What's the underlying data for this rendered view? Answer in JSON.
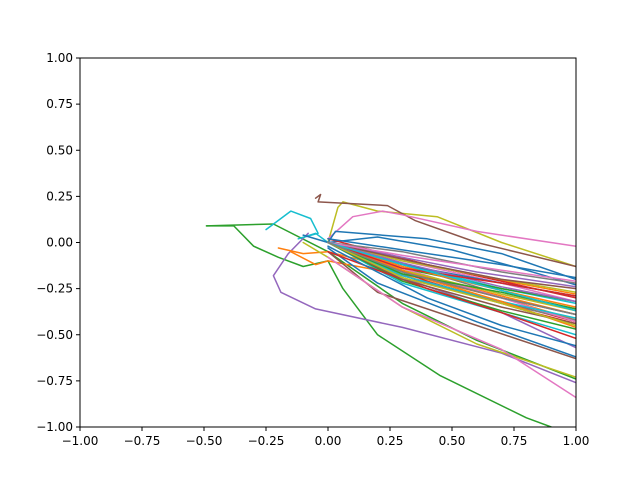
{
  "chart_data": {
    "type": "line",
    "title": "",
    "xlabel": "",
    "ylabel": "",
    "xlim": [
      -1.0,
      1.0
    ],
    "ylim": [
      -1.0,
      1.0
    ],
    "grid": false,
    "x_ticks": [
      "−1.00",
      "−0.75",
      "−0.50",
      "−0.25",
      "0.00",
      "0.25",
      "0.50",
      "0.75",
      "1.00"
    ],
    "y_ticks": [
      "−1.00",
      "−0.75",
      "−0.50",
      "−0.25",
      "0.00",
      "0.25",
      "0.50",
      "0.75",
      "1.00"
    ],
    "x_tick_values": [
      -1.0,
      -0.75,
      -0.5,
      -0.25,
      0.0,
      0.25,
      0.5,
      0.75,
      1.0
    ],
    "y_tick_values": [
      -1.0,
      -0.75,
      -0.5,
      -0.25,
      0.0,
      0.25,
      0.5,
      0.75,
      1.0
    ],
    "series": [
      {
        "color": "#2ca02c",
        "x": [
          -0.49,
          -0.38,
          -0.3,
          -0.2,
          -0.1,
          0.0,
          0.06,
          0.2,
          0.45,
          0.8,
          0.9
        ],
        "y": [
          0.09,
          0.09,
          -0.02,
          -0.08,
          -0.13,
          -0.1,
          -0.25,
          -0.5,
          -0.72,
          -0.95,
          -1.0
        ]
      },
      {
        "color": "#2ca02c",
        "x": [
          -0.49,
          -0.22,
          0.0,
          0.3,
          0.6,
          1.0
        ],
        "y": [
          0.09,
          0.1,
          -0.05,
          -0.33,
          -0.53,
          -0.74
        ]
      },
      {
        "color": "#9467bd",
        "x": [
          -0.08,
          -0.16,
          -0.22,
          -0.19,
          -0.05,
          0.3,
          0.7,
          1.0
        ],
        "y": [
          0.05,
          -0.06,
          -0.18,
          -0.27,
          -0.36,
          -0.46,
          -0.6,
          -0.76
        ]
      },
      {
        "color": "#17becf",
        "x": [
          -0.25,
          -0.15,
          -0.07,
          -0.04,
          -0.12,
          -0.05,
          0.0
        ],
        "y": [
          0.07,
          0.17,
          0.13,
          0.05,
          0.02,
          0.05,
          0.0
        ]
      },
      {
        "color": "#bcbd22",
        "x": [
          0.0,
          0.04,
          0.06,
          0.2,
          0.44,
          0.7,
          1.0
        ],
        "y": [
          0.0,
          0.19,
          0.22,
          0.17,
          0.14,
          0.0,
          -0.13
        ]
      },
      {
        "color": "#8c564b",
        "x": [
          -0.05,
          -0.03,
          -0.04,
          0.24,
          0.35,
          0.6,
          1.0
        ],
        "y": [
          0.24,
          0.26,
          0.22,
          0.2,
          0.12,
          0.0,
          -0.13
        ]
      },
      {
        "color": "#e377c2",
        "x": [
          0.0,
          0.1,
          0.22,
          0.3,
          0.6,
          1.0
        ],
        "y": [
          0.02,
          0.14,
          0.17,
          0.15,
          0.06,
          -0.02
        ]
      },
      {
        "color": "#1f77b4",
        "x": [
          -0.1,
          0.0,
          0.03,
          0.4,
          0.7,
          1.0
        ],
        "y": [
          0.04,
          0.0,
          0.06,
          0.02,
          -0.06,
          -0.2
        ]
      },
      {
        "color": "#1f77b4",
        "x": [
          0.0,
          0.2,
          0.5,
          0.8,
          1.0
        ],
        "y": [
          0.0,
          0.03,
          -0.04,
          -0.15,
          -0.23
        ]
      },
      {
        "color": "#ff7f0e",
        "x": [
          -0.15,
          -0.05,
          0.0,
          0.4,
          0.7,
          1.0
        ],
        "y": [
          -0.05,
          -0.12,
          -0.1,
          -0.2,
          -0.3,
          -0.42
        ]
      },
      {
        "color": "#ff7f0e",
        "x": [
          -0.2,
          -0.1,
          0.0,
          0.35,
          0.7,
          1.0
        ],
        "y": [
          -0.03,
          -0.06,
          -0.05,
          -0.17,
          -0.29,
          -0.39
        ]
      },
      {
        "color": "#d62728",
        "x": [
          0.0,
          0.3,
          0.7,
          1.0
        ],
        "y": [
          0.0,
          -0.18,
          -0.32,
          -0.43
        ]
      },
      {
        "color": "#d62728",
        "x": [
          0.0,
          0.4,
          0.8,
          1.0
        ],
        "y": [
          0.0,
          -0.21,
          -0.37,
          -0.44
        ]
      },
      {
        "color": "#8c564b",
        "x": [
          0.0,
          0.2,
          0.6,
          1.0
        ],
        "y": [
          -0.05,
          -0.27,
          -0.45,
          -0.63
        ]
      },
      {
        "color": "#7f7f7f",
        "x": [
          0.0,
          0.35,
          0.7,
          1.0
        ],
        "y": [
          0.0,
          -0.2,
          -0.33,
          -0.42
        ]
      },
      {
        "color": "#bcbd22",
        "x": [
          -0.1,
          0.0,
          0.3,
          0.6,
          1.0
        ],
        "y": [
          0.0,
          -0.08,
          -0.35,
          -0.55,
          -0.73
        ]
      },
      {
        "color": "#e377c2",
        "x": [
          0.0,
          0.3,
          0.7,
          1.0
        ],
        "y": [
          -0.08,
          -0.35,
          -0.58,
          -0.84
        ]
      },
      {
        "color": "#17becf",
        "x": [
          0.0,
          0.4,
          0.7,
          1.0
        ],
        "y": [
          0.0,
          -0.15,
          -0.25,
          -0.33
        ]
      },
      {
        "color": "#1f77b4",
        "x": [
          0.0,
          0.2,
          0.6,
          1.0
        ],
        "y": [
          -0.03,
          -0.22,
          -0.43,
          -0.62
        ]
      },
      {
        "color": "#9467bd",
        "x": [
          0.0,
          0.3,
          0.7,
          1.0
        ],
        "y": [
          0.0,
          -0.19,
          -0.38,
          -0.57
        ]
      },
      {
        "color": "#2ca02c",
        "x": [
          0.0,
          0.3,
          0.7,
          1.0
        ],
        "y": [
          0.0,
          -0.14,
          -0.25,
          -0.32
        ]
      },
      {
        "color": "#ff7f0e",
        "x": [
          0.0,
          0.3,
          0.6,
          1.0
        ],
        "y": [
          0.0,
          -0.09,
          -0.18,
          -0.28
        ]
      },
      {
        "color": "#d62728",
        "x": [
          0.0,
          0.4,
          0.8,
          1.0
        ],
        "y": [
          0.02,
          -0.12,
          -0.24,
          -0.3
        ]
      },
      {
        "color": "#8c564b",
        "x": [
          0.0,
          0.3,
          0.7,
          1.0
        ],
        "y": [
          0.0,
          -0.16,
          -0.3,
          -0.39
        ]
      },
      {
        "color": "#e377c2",
        "x": [
          0.0,
          0.3,
          0.7,
          1.0
        ],
        "y": [
          0.0,
          -0.1,
          -0.22,
          -0.32
        ]
      },
      {
        "color": "#7f7f7f",
        "x": [
          0.0,
          0.4,
          0.7,
          1.0
        ],
        "y": [
          0.0,
          -0.16,
          -0.28,
          -0.36
        ]
      },
      {
        "color": "#bcbd22",
        "x": [
          0.0,
          0.3,
          0.7,
          1.0
        ],
        "y": [
          0.0,
          -0.1,
          -0.2,
          -0.27
        ]
      },
      {
        "color": "#17becf",
        "x": [
          0.0,
          0.3,
          0.7,
          1.0
        ],
        "y": [
          0.0,
          -0.22,
          -0.38,
          -0.5
        ]
      },
      {
        "color": "#1f77b4",
        "x": [
          0.0,
          0.35,
          0.7,
          1.0
        ],
        "y": [
          0.02,
          -0.05,
          -0.12,
          -0.19
        ]
      },
      {
        "color": "#9467bd",
        "x": [
          0.0,
          0.3,
          0.6,
          1.0
        ],
        "y": [
          0.0,
          -0.08,
          -0.16,
          -0.24
        ]
      },
      {
        "color": "#2ca02c",
        "x": [
          0.0,
          0.3,
          0.7,
          1.0
        ],
        "y": [
          0.0,
          -0.21,
          -0.37,
          -0.47
        ]
      },
      {
        "color": "#ff7f0e",
        "x": [
          0.0,
          0.3,
          0.7,
          1.0
        ],
        "y": [
          0.0,
          -0.13,
          -0.26,
          -0.35
        ]
      },
      {
        "color": "#d62728",
        "x": [
          0.0,
          0.4,
          0.7,
          1.0
        ],
        "y": [
          -0.05,
          -0.25,
          -0.38,
          -0.52
        ]
      },
      {
        "color": "#8c564b",
        "x": [
          0.0,
          0.4,
          0.7,
          1.0
        ],
        "y": [
          0.0,
          -0.12,
          -0.2,
          -0.25
        ]
      },
      {
        "color": "#1f77b4",
        "x": [
          0.0,
          0.4,
          0.7,
          1.0
        ],
        "y": [
          -0.02,
          -0.3,
          -0.45,
          -0.56
        ]
      },
      {
        "color": "#e377c2",
        "x": [
          0.0,
          0.3,
          0.7,
          1.0
        ],
        "y": [
          0.0,
          -0.14,
          -0.3,
          -0.43
        ]
      },
      {
        "color": "#7f7f7f",
        "x": [
          0.0,
          0.3,
          0.7,
          1.0
        ],
        "y": [
          0.0,
          -0.05,
          -0.16,
          -0.22
        ]
      },
      {
        "color": "#bcbd22",
        "x": [
          0.0,
          0.3,
          0.7,
          1.0
        ],
        "y": [
          0.0,
          -0.15,
          -0.28,
          -0.37
        ]
      },
      {
        "color": "#17becf",
        "x": [
          0.0,
          0.3,
          0.7,
          1.0
        ],
        "y": [
          0.0,
          -0.18,
          -0.32,
          -0.41
        ]
      },
      {
        "color": "#1f77b4",
        "x": [
          0.0,
          0.3,
          0.7,
          1.0
        ],
        "y": [
          0.0,
          -0.12,
          -0.22,
          -0.29
        ]
      },
      {
        "color": "#ff7f0e",
        "x": [
          0.0,
          0.4,
          0.7,
          1.0
        ],
        "y": [
          0.0,
          -0.2,
          -0.32,
          -0.46
        ]
      },
      {
        "color": "#2ca02c",
        "x": [
          0.0,
          0.3,
          0.7,
          1.0
        ],
        "y": [
          0.0,
          -0.17,
          -0.27,
          -0.36
        ]
      },
      {
        "color": "#9467bd",
        "x": [
          0.0,
          0.3,
          0.7,
          1.0
        ],
        "y": [
          0.0,
          -0.11,
          -0.24,
          -0.32
        ]
      },
      {
        "color": "#d62728",
        "x": [
          0.0,
          0.3,
          0.7,
          1.0
        ],
        "y": [
          0.0,
          -0.14,
          -0.22,
          -0.29
        ]
      },
      {
        "color": "#8c564b",
        "x": [
          0.0,
          0.3,
          0.7,
          1.0
        ],
        "y": [
          0.0,
          -0.2,
          -0.35,
          -0.44
        ]
      },
      {
        "color": "#e377c2",
        "x": [
          0.0,
          0.3,
          0.7,
          1.0
        ],
        "y": [
          0.0,
          -0.07,
          -0.15,
          -0.21
        ]
      },
      {
        "color": "#bcbd22",
        "x": [
          0.0,
          0.3,
          0.7,
          1.0
        ],
        "y": [
          0.0,
          -0.19,
          -0.33,
          -0.45
        ]
      },
      {
        "color": "#17becf",
        "x": [
          0.0,
          0.3,
          0.7,
          1.0
        ],
        "y": [
          0.0,
          -0.12,
          -0.26,
          -0.37
        ]
      },
      {
        "color": "#7f7f7f",
        "x": [
          0.0,
          0.3,
          0.7,
          1.0
        ],
        "y": [
          0.0,
          -0.16,
          -0.3,
          -0.39
        ]
      }
    ]
  }
}
